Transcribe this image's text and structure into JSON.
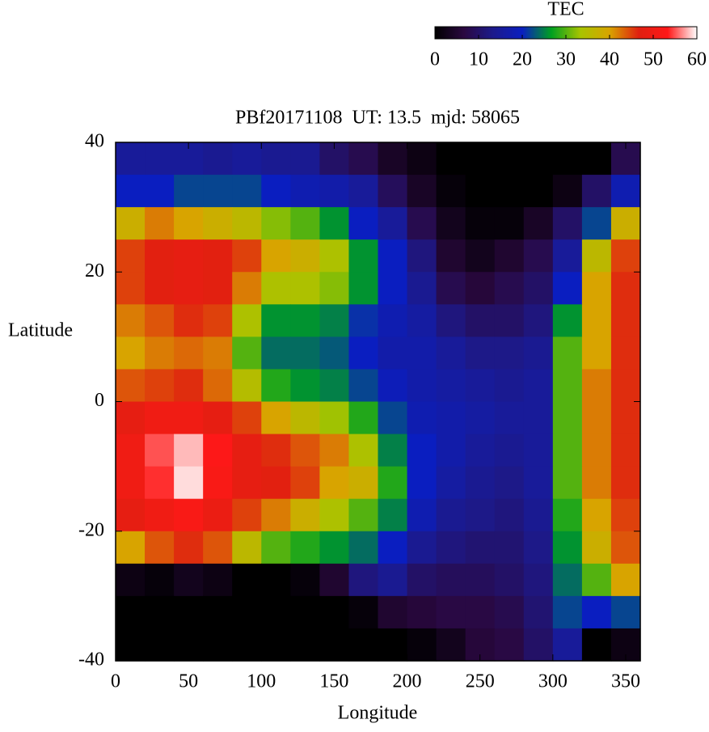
{
  "chart_data": {
    "type": "heatmap",
    "title": "PBf20171108  UT: 13.5  mjd: 58065",
    "x_label": "Longitude",
    "y_label": "Latitude",
    "colorbar_label": "TEC",
    "x": [
      10,
      30,
      50,
      70,
      90,
      110,
      130,
      150,
      170,
      190,
      210,
      230,
      250,
      270,
      290,
      310,
      330,
      350
    ],
    "y": [
      37.5,
      32.5,
      27.5,
      22.5,
      17.5,
      12.5,
      7.5,
      2.5,
      -2.5,
      -7.5,
      -12.5,
      -17.5,
      -22.5,
      -27.5,
      -32.5,
      -37.5
    ],
    "z": [
      [
        15,
        15,
        15,
        14,
        15,
        14,
        14,
        10,
        8,
        4,
        2,
        0,
        0,
        0,
        0,
        0,
        0,
        8
      ],
      [
        20,
        20,
        22,
        22,
        22,
        20,
        18,
        17,
        15,
        9,
        4,
        1,
        0,
        0,
        0,
        2,
        10,
        18
      ],
      [
        38,
        42,
        40,
        38,
        36,
        32,
        30,
        26,
        20,
        15,
        8,
        3,
        1,
        1,
        4,
        10,
        22,
        38
      ],
      [
        45,
        47,
        48,
        47,
        45,
        40,
        38,
        34,
        26,
        20,
        12,
        5,
        3,
        5,
        8,
        15,
        36,
        45
      ],
      [
        45,
        47,
        48,
        47,
        42,
        34,
        34,
        32,
        26,
        20,
        14,
        8,
        6,
        8,
        10,
        20,
        40,
        46
      ],
      [
        42,
        44,
        46,
        45,
        34,
        26,
        26,
        25,
        21,
        18,
        16,
        12,
        10,
        10,
        12,
        26,
        40,
        46
      ],
      [
        40,
        42,
        43,
        42,
        30,
        24,
        24,
        23,
        20,
        17,
        17,
        15,
        13,
        13,
        14,
        30,
        40,
        46
      ],
      [
        44,
        45,
        46,
        43,
        35,
        28,
        26,
        25,
        22,
        19,
        17,
        16,
        15,
        14,
        15,
        30,
        42,
        46
      ],
      [
        48,
        50,
        50,
        48,
        45,
        40,
        36,
        33,
        28,
        22,
        18,
        17,
        16,
        15,
        15,
        30,
        42,
        46
      ],
      [
        50,
        55,
        58,
        53,
        48,
        46,
        44,
        42,
        34,
        25,
        20,
        17,
        15,
        14,
        15,
        30,
        42,
        46
      ],
      [
        50,
        54,
        59,
        52,
        48,
        47,
        45,
        40,
        38,
        28,
        20,
        16,
        14,
        13,
        15,
        30,
        42,
        46
      ],
      [
        48,
        50,
        52,
        49,
        45,
        42,
        38,
        34,
        30,
        25,
        18,
        14,
        13,
        12,
        14,
        28,
        40,
        45
      ],
      [
        40,
        44,
        46,
        44,
        36,
        30,
        28,
        26,
        24,
        20,
        14,
        12,
        11,
        11,
        13,
        26,
        38,
        44
      ],
      [
        2,
        1,
        3,
        2,
        0,
        0,
        1,
        5,
        12,
        14,
        10,
        9,
        9,
        10,
        12,
        24,
        30,
        40
      ],
      [
        0,
        0,
        0,
        0,
        0,
        0,
        0,
        0,
        1,
        5,
        6,
        7,
        7,
        8,
        11,
        22,
        20,
        22
      ],
      [
        0,
        0,
        0,
        0,
        0,
        0,
        0,
        0,
        0,
        0,
        1,
        3,
        6,
        7,
        10,
        15,
        0,
        2
      ]
    ],
    "xlim": [
      0,
      360
    ],
    "xticks": [
      0,
      50,
      100,
      150,
      200,
      250,
      300,
      350
    ],
    "ylim": [
      -40,
      40
    ],
    "yticks": [
      -40,
      -20,
      0,
      20,
      40
    ],
    "clim": [
      0,
      60
    ],
    "cticks": [
      0,
      10,
      20,
      30,
      40,
      50,
      60
    ],
    "colormap": [
      "#000000",
      "#2a0840",
      "#1c1a8c",
      "#0a1ec0",
      "#00a020",
      "#a8c400",
      "#d8a400",
      "#e02010",
      "#ff1818",
      "#ffffff"
    ]
  }
}
